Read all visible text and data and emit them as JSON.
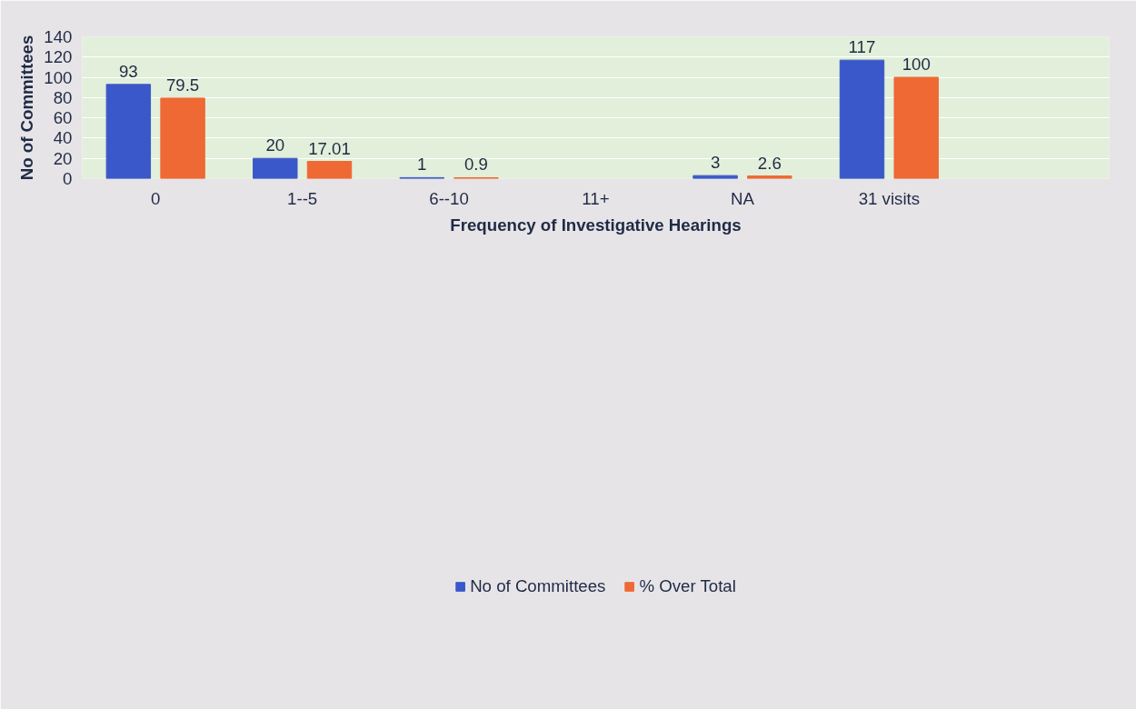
{
  "chart_data": {
    "type": "bar",
    "xlabel": "Frequency of Investigative Hearings",
    "ylabel": "No of Committees",
    "categories": [
      "0",
      "1--5",
      "6--10",
      "11+",
      "NA",
      "31 visits",
      null
    ],
    "series": [
      {
        "name": "No of Committees",
        "color": "#3a58c9",
        "values": [
          93,
          20,
          1,
          null,
          3,
          117,
          null
        ]
      },
      {
        "name": "% Over Total",
        "color": "#ee6934",
        "values": [
          79.5,
          17.01,
          0.9,
          null,
          2.6,
          100,
          null
        ]
      }
    ],
    "ylim": [
      0,
      140
    ],
    "yticks": [
      0,
      20,
      40,
      60,
      80,
      100,
      120,
      140
    ],
    "grid": "y",
    "legend": "bottom",
    "data_labels": true
  }
}
